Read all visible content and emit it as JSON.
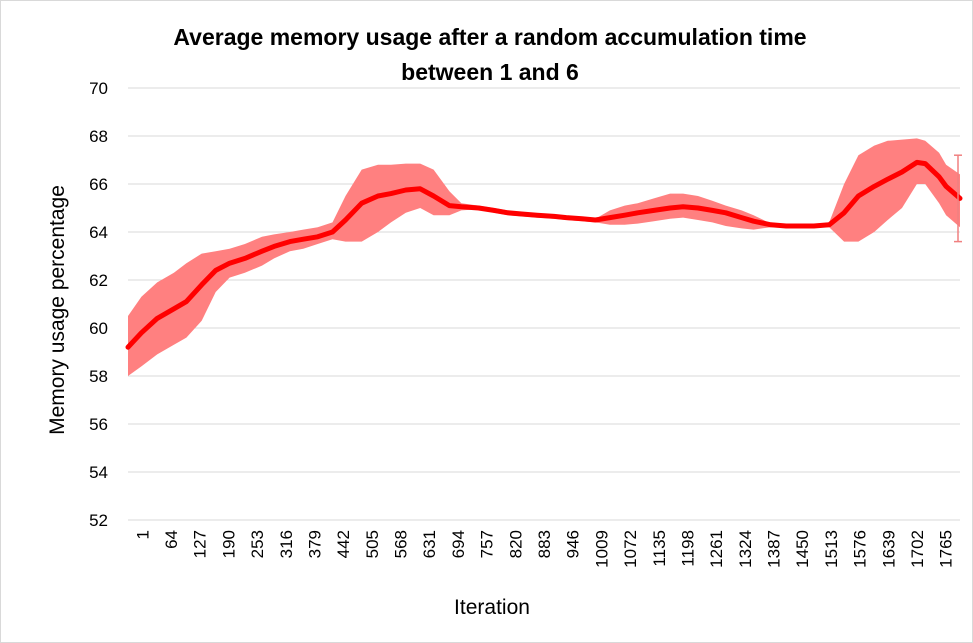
{
  "chart_data": {
    "type": "line",
    "title_line1": "Average memory usage after a  random accumulation time",
    "title_line2": "between 1 and 6",
    "xlabel": "Iteration",
    "ylabel": "Memory usage percentage",
    "ylim": [
      52,
      70
    ],
    "yticks": [
      52,
      54,
      56,
      58,
      60,
      62,
      64,
      66,
      68,
      70
    ],
    "xticks": [
      "1",
      "64",
      "127",
      "190",
      "253",
      "316",
      "379",
      "442",
      "505",
      "568",
      "631",
      "694",
      "757",
      "820",
      "883",
      "946",
      "1009",
      "1072",
      "1135",
      "1198",
      "1261",
      "1324",
      "1387",
      "1450",
      "1513",
      "1576",
      "1639",
      "1702",
      "1765"
    ],
    "grid": true,
    "series": [
      {
        "color": "#ff0000",
        "band_color": "#ff8080",
        "x": [
          1,
          30,
          64,
          100,
          127,
          160,
          190,
          220,
          253,
          290,
          316,
          350,
          379,
          410,
          442,
          470,
          505,
          540,
          568,
          600,
          631,
          660,
          694,
          720,
          757,
          790,
          820,
          850,
          883,
          920,
          946,
          980,
          1009,
          1040,
          1072,
          1100,
          1135,
          1170,
          1198,
          1230,
          1261,
          1290,
          1324,
          1350,
          1387,
          1420,
          1450,
          1480,
          1513,
          1545,
          1576,
          1610,
          1639,
          1670,
          1702,
          1720,
          1750,
          1765,
          1795
        ],
        "y": [
          59.2,
          59.8,
          60.4,
          60.8,
          61.1,
          61.8,
          62.4,
          62.7,
          62.9,
          63.2,
          63.4,
          63.6,
          63.7,
          63.8,
          64.0,
          64.5,
          65.2,
          65.5,
          65.6,
          65.75,
          65.8,
          65.5,
          65.1,
          65.05,
          65.0,
          64.9,
          64.8,
          64.75,
          64.7,
          64.65,
          64.6,
          64.55,
          64.5,
          64.6,
          64.7,
          64.8,
          64.9,
          65.0,
          65.05,
          65.0,
          64.9,
          64.8,
          64.6,
          64.45,
          64.3,
          64.25,
          64.25,
          64.25,
          64.3,
          64.8,
          65.5,
          65.9,
          66.2,
          66.5,
          66.9,
          66.85,
          66.3,
          65.9,
          65.4
        ],
        "upper": [
          60.5,
          61.3,
          61.9,
          62.3,
          62.7,
          63.1,
          63.2,
          63.3,
          63.5,
          63.8,
          63.9,
          64.0,
          64.1,
          64.2,
          64.4,
          65.5,
          66.6,
          66.8,
          66.8,
          66.85,
          66.85,
          66.6,
          65.7,
          65.2,
          65.1,
          65.0,
          64.9,
          64.8,
          64.75,
          64.7,
          64.65,
          64.6,
          64.55,
          64.9,
          65.1,
          65.2,
          65.4,
          65.6,
          65.6,
          65.5,
          65.3,
          65.1,
          64.9,
          64.7,
          64.35,
          64.3,
          64.3,
          64.3,
          64.4,
          66.0,
          67.2,
          67.6,
          67.8,
          67.85,
          67.9,
          67.8,
          67.3,
          66.8,
          66.4
        ],
        "lower": [
          58.0,
          58.4,
          58.9,
          59.3,
          59.6,
          60.3,
          61.5,
          62.1,
          62.3,
          62.6,
          62.9,
          63.2,
          63.3,
          63.5,
          63.7,
          63.6,
          63.6,
          64.0,
          64.4,
          64.8,
          65.0,
          64.7,
          64.7,
          64.9,
          64.95,
          64.8,
          64.7,
          64.65,
          64.6,
          64.55,
          64.5,
          64.45,
          64.4,
          64.3,
          64.3,
          64.35,
          64.45,
          64.55,
          64.6,
          64.5,
          64.4,
          64.25,
          64.15,
          64.1,
          64.2,
          64.2,
          64.2,
          64.2,
          64.2,
          63.6,
          63.6,
          64.0,
          64.5,
          65.0,
          66.0,
          66.0,
          65.2,
          64.7,
          64.2
        ]
      }
    ],
    "error_bar": {
      "x": 1795,
      "low": 63.6,
      "high": 67.2
    }
  }
}
